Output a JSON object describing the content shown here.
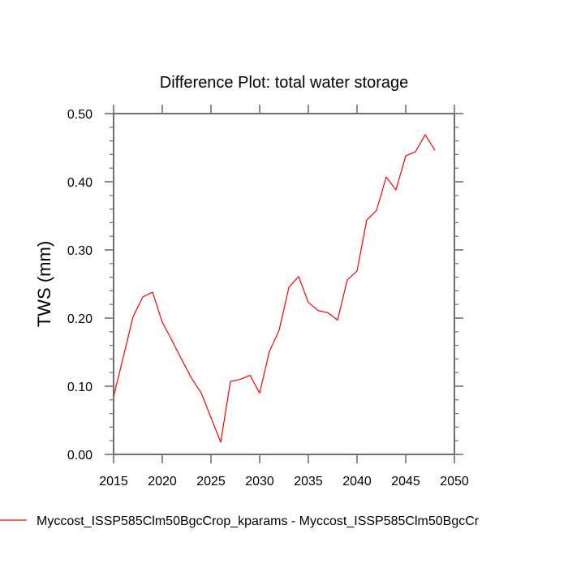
{
  "chart_data": {
    "type": "line",
    "title": "Difference Plot: total water storage",
    "xlabel": "",
    "ylabel": "TWS  (mm)",
    "xlim": [
      2015,
      2050
    ],
    "ylim": [
      0.0,
      0.5
    ],
    "x_ticks": [
      2015,
      2020,
      2025,
      2030,
      2035,
      2040,
      2045,
      2050
    ],
    "x_tick_labels": [
      "2015",
      "2020",
      "2025",
      "2030",
      "2035",
      "2040",
      "2045",
      "2050"
    ],
    "y_ticks": [
      0.0,
      0.1,
      0.2,
      0.3,
      0.4,
      0.5
    ],
    "y_tick_labels": [
      "0.00",
      "0.10",
      "0.20",
      "0.30",
      "0.40",
      "0.50"
    ],
    "y_minor_step": 0.02,
    "grid": false,
    "legend_position": "bottom",
    "series": [
      {
        "name": "Myccost_ISSP585Clm50BgcCrop_kparams - Myccost_ISSP585Clm50BgcCr",
        "color": "#ff0000",
        "x": [
          2015,
          2016,
          2017,
          2018,
          2019,
          2020,
          2021,
          2022,
          2023,
          2024,
          2025,
          2026,
          2027,
          2028,
          2029,
          2030,
          2031,
          2032,
          2033,
          2034,
          2035,
          2036,
          2037,
          2038,
          2039,
          2040,
          2041,
          2042,
          2043,
          2044,
          2045,
          2046,
          2047,
          2048
        ],
        "values": [
          0.085,
          0.143,
          0.202,
          0.231,
          0.238,
          0.194,
          0.167,
          0.139,
          0.112,
          0.09,
          0.054,
          0.018,
          0.107,
          0.11,
          0.116,
          0.09,
          0.151,
          0.182,
          0.245,
          0.261,
          0.223,
          0.211,
          0.208,
          0.197,
          0.256,
          0.269,
          0.344,
          0.358,
          0.407,
          0.388,
          0.438,
          0.444,
          0.469,
          0.446
        ]
      }
    ]
  }
}
